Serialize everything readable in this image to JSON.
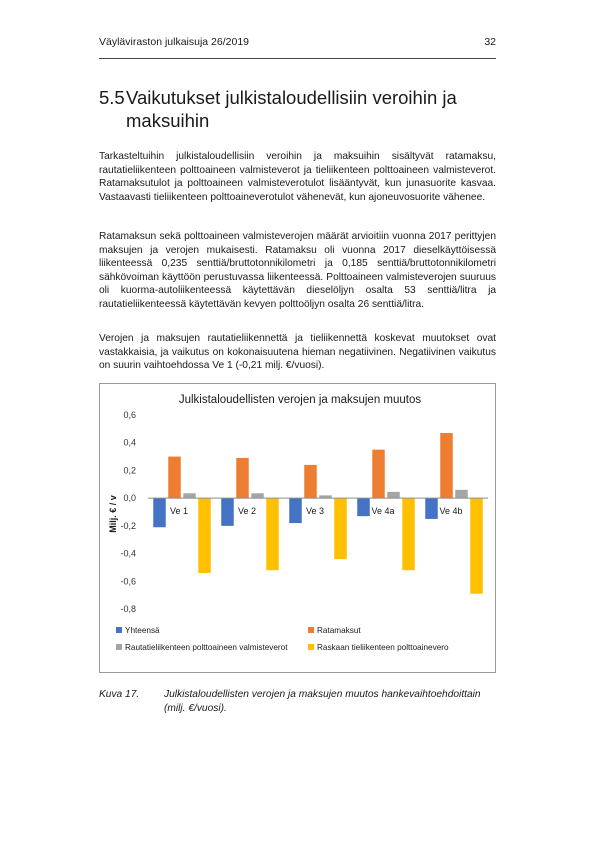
{
  "header": {
    "title": "Väyläviraston julkaisuja 26/2019",
    "page_number": "32"
  },
  "section": {
    "number": "5.5",
    "title_line1": "Vaikutukset julkistaloudellisiin veroihin ja",
    "title_line2": "maksuihin"
  },
  "paragraphs": [
    "Tarkasteltuihin julkistaloudellisiin veroihin ja maksuihin sisältyvät ratamaksu, rautatieliikenteen polttoaineen valmisteverot ja tieliikenteen polttoaineen valmisteverot. Ratamaksutulot ja polttoaineen valmisteverotulot lisääntyvät, kun junasuorite kasvaa. Vastaavasti tieliikenteen polttoaineverotulot vähenevät, kun ajoneuvosuorite vähenee.",
    "Ratamaksun sekä polttoaineen valmisteverojen määrät arvioitiin vuonna 2017 perittyjen maksujen ja verojen mukaisesti. Ratamaksu oli vuonna 2017 dieselkäyttöisessä liikenteessä 0,235 senttiä/bruttotonnikilometri ja 0,185 senttiä/bruttotonnikilometri sähkövoiman käyttöön perustuvassa liikenteessä. Polttoaineen valmisteverojen suuruus oli kuorma-autoliikenteessä käytettävän dieselöljyn osalta 53 senttiä/litra ja rautatieliikenteessä käytettävän kevyen polttoöljyn osalta 26 senttiä/litra.",
    "Verojen ja maksujen rautatieliikennettä ja tieliikennettä koskevat muutokset ovat vastakkaisia, ja vaikutus on kokonaisuutena hieman negatiivinen. Negatiivinen vaikutus on suurin vaihtoehdossa Ve 1 (-0,21 milj. €/vuosi)."
  ],
  "chart_data": {
    "type": "bar",
    "title": "Julkistaloudellisten verojen ja maksujen muutos",
    "ylabel": "Milj. € / v",
    "xlabel": "",
    "categories": [
      "Ve 1",
      "Ve 2",
      "Ve 3",
      "Ve 4a",
      "Ve 4b"
    ],
    "ylim": [
      -0.8,
      0.6
    ],
    "yticks": [
      0.6,
      0.4,
      0.2,
      0.0,
      -0.2,
      -0.4,
      -0.6,
      -0.8
    ],
    "ytick_labels": [
      "0,6",
      "0,4",
      "0,2",
      "0,0",
      "-0,2",
      "-0,4",
      "-0,6",
      "-0,8"
    ],
    "series": [
      {
        "name": "Yhteensä",
        "color": "#4472c4",
        "values": [
          -0.21,
          -0.2,
          -0.18,
          -0.13,
          -0.15
        ]
      },
      {
        "name": "Ratamaksut",
        "color": "#ed7d31",
        "values": [
          0.3,
          0.29,
          0.24,
          0.35,
          0.47
        ]
      },
      {
        "name": "Rautatieliikenteen polttoaineen valmisteverot",
        "color": "#a5a5a5",
        "values": [
          0.035,
          0.035,
          0.02,
          0.045,
          0.06
        ]
      },
      {
        "name": "Raskaan tieliikenteen polttoainevero",
        "color": "#ffc000",
        "values": [
          -0.54,
          -0.52,
          -0.44,
          -0.52,
          -0.69
        ]
      }
    ],
    "grid": false,
    "legend": "bottom"
  },
  "caption": {
    "label": "Kuva 17.",
    "text": "Julkistaloudellisten verojen ja maksujen muutos hankevaihtoehdoittain (milj. €/vuosi)."
  }
}
